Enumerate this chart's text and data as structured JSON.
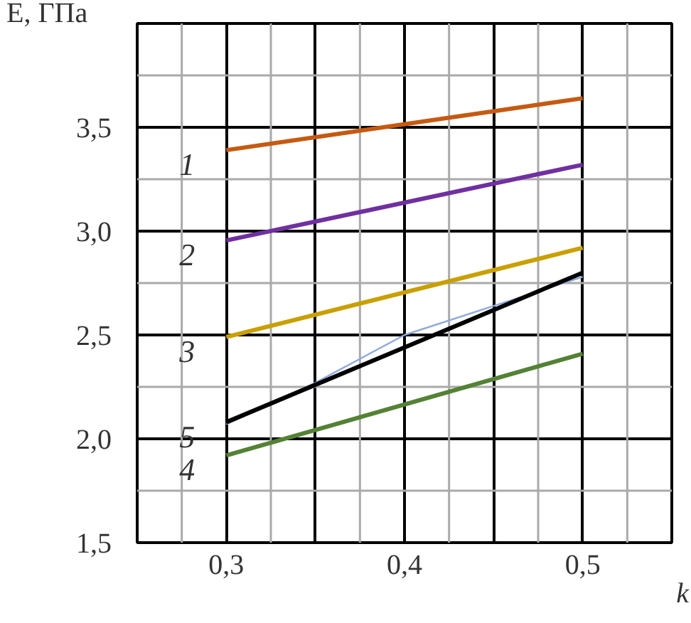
{
  "chart_data": {
    "type": "line",
    "xlabel": "k",
    "ylabel": "E, ГПа",
    "xlim": [
      0.25,
      0.55
    ],
    "ylim": [
      1.5,
      4.0
    ],
    "xticks": [
      {
        "value": 0.25,
        "label": null
      },
      {
        "value": 0.3,
        "label": "0,3"
      },
      {
        "value": 0.35,
        "label": null
      },
      {
        "value": 0.4,
        "label": "0,4"
      },
      {
        "value": 0.45,
        "label": null
      },
      {
        "value": 0.5,
        "label": "0,5"
      },
      {
        "value": 0.55,
        "label": null
      }
    ],
    "yticks": [
      {
        "value": 1.5,
        "label": "1,5"
      },
      {
        "value": 2.0,
        "label": "2,0"
      },
      {
        "value": 2.5,
        "label": "2,5"
      },
      {
        "value": 3.0,
        "label": "3,0"
      },
      {
        "value": 3.5,
        "label": "3,5"
      },
      {
        "value": 4.0,
        "label": null
      }
    ],
    "grid": true,
    "marker": "none",
    "line_style": "solid",
    "x": [
      0.3,
      0.5
    ],
    "series": [
      {
        "name": "1",
        "color": "#c55a11",
        "values": [
          3.39,
          3.64
        ]
      },
      {
        "name": "2",
        "color": "#7030a0",
        "values": [
          2.955,
          3.32
        ]
      },
      {
        "name": "3",
        "color": "#c9a000",
        "values": [
          2.49,
          2.92
        ]
      },
      {
        "color": "#8faadc",
        "x": [
          0.3,
          0.35,
          0.4,
          0.45,
          0.5
        ],
        "values": [
          2.07,
          2.27,
          2.5,
          2.64,
          2.78
        ]
      },
      {
        "name": "5",
        "color": "#000000",
        "values": [
          2.08,
          2.8
        ]
      },
      {
        "name": "4",
        "color": "#548235",
        "values": [
          1.92,
          2.41
        ]
      }
    ]
  }
}
